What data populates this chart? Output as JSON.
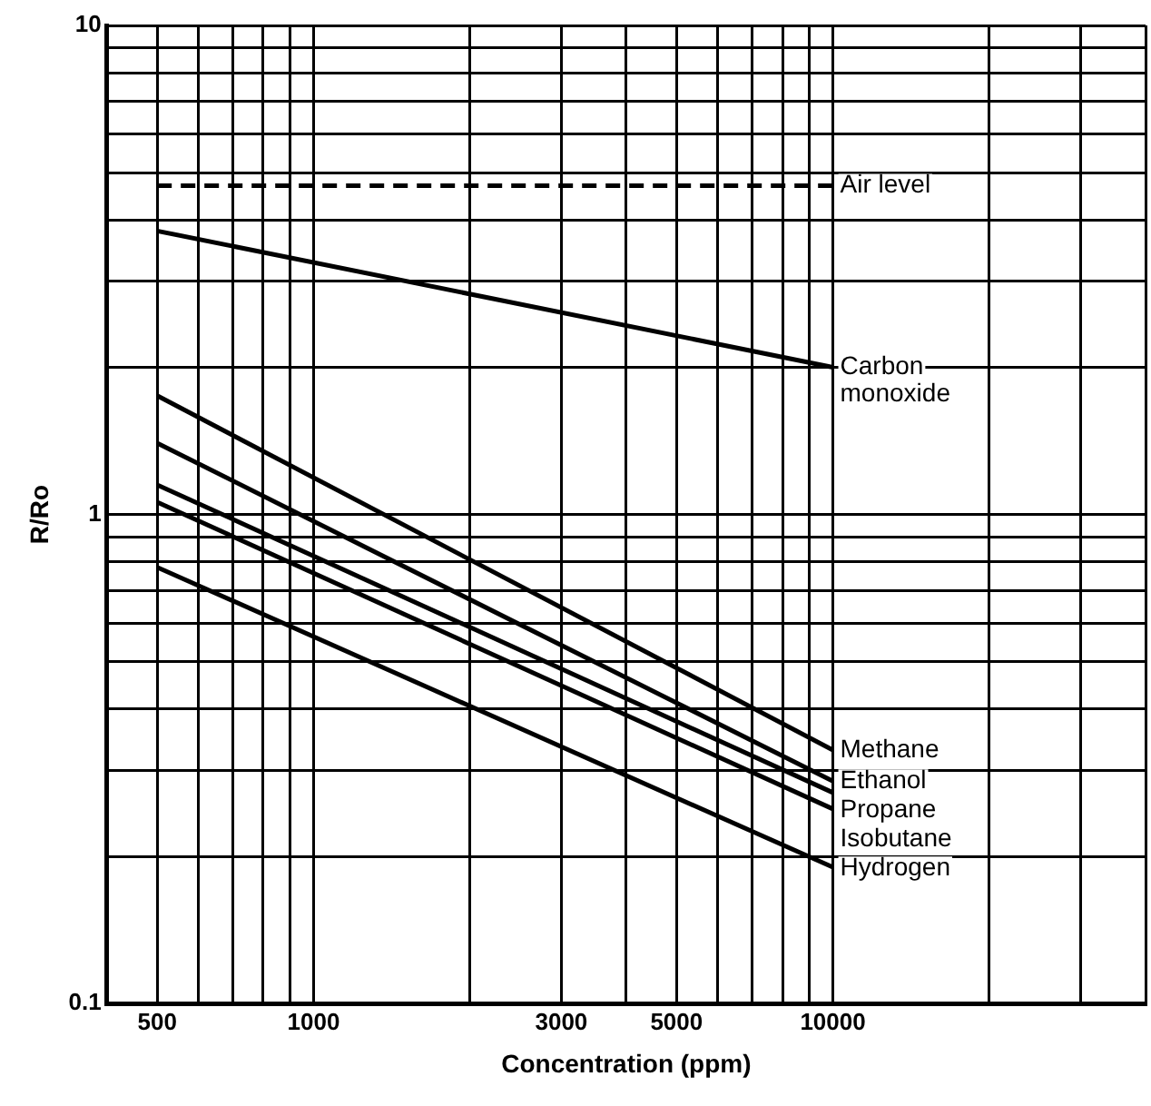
{
  "chart_data": {
    "type": "line",
    "xlabel": "Concentration (ppm)",
    "ylabel": "R/Ro",
    "log": "xy",
    "grid": true,
    "legend": false,
    "marker": "none",
    "xlim": [
      400,
      40000
    ],
    "ylim": [
      0.1,
      10
    ],
    "xticks": [
      {
        "value": 400,
        "label": null
      },
      500,
      {
        "value": 600,
        "label": null
      },
      {
        "value": 700,
        "label": null
      },
      {
        "value": 800,
        "label": null
      },
      {
        "value": 900,
        "label": null
      },
      1000,
      {
        "value": 2000,
        "label": null
      },
      3000,
      {
        "value": 4000,
        "label": null
      },
      5000,
      {
        "value": 6000,
        "label": null
      },
      {
        "value": 7000,
        "label": null
      },
      {
        "value": 8000,
        "label": null
      },
      {
        "value": 9000,
        "label": null
      },
      10000,
      {
        "value": 20000,
        "label": null
      },
      {
        "value": 30000,
        "label": null
      },
      {
        "value": 40000,
        "label": null
      }
    ],
    "yticks": [
      0.1,
      {
        "value": 0.2,
        "label": null
      },
      {
        "value": 0.3,
        "label": null
      },
      {
        "value": 0.4,
        "label": null
      },
      {
        "value": 0.5,
        "label": null
      },
      {
        "value": 0.6,
        "label": null
      },
      {
        "value": 0.7,
        "label": null
      },
      {
        "value": 0.8,
        "label": null
      },
      {
        "value": 0.9,
        "label": null
      },
      1,
      {
        "value": 2,
        "label": null
      },
      {
        "value": 3,
        "label": null
      },
      {
        "value": 4,
        "label": null
      },
      {
        "value": 5,
        "label": null
      },
      {
        "value": 6,
        "label": null
      },
      {
        "value": 7,
        "label": null
      },
      {
        "value": 8,
        "label": null
      },
      {
        "value": 9,
        "label": null
      },
      10
    ],
    "x": [
      500,
      10000
    ],
    "series": [
      {
        "name": "Air level",
        "color": "#000000",
        "values": [
          4.7,
          4.7
        ],
        "line_style": "dashed"
      },
      {
        "name": "Carbon monoxide",
        "color": "#000000",
        "values": [
          3.8,
          2.0
        ],
        "line_style": "solid"
      },
      {
        "name": "Methane",
        "color": "#000000",
        "values": [
          1.75,
          0.33
        ],
        "line_style": "solid"
      },
      {
        "name": "Ethanol",
        "color": "#000000",
        "values": [
          1.4,
          0.285
        ],
        "line_style": "solid"
      },
      {
        "name": "Propane",
        "color": "#000000",
        "values": [
          1.15,
          0.27
        ],
        "line_style": "solid"
      },
      {
        "name": "Isobutane",
        "color": "#000000",
        "values": [
          1.06,
          0.25
        ],
        "line_style": "solid"
      },
      {
        "name": "Hydrogen",
        "color": "#000000",
        "values": [
          0.78,
          0.19
        ],
        "line_style": "solid"
      }
    ]
  }
}
